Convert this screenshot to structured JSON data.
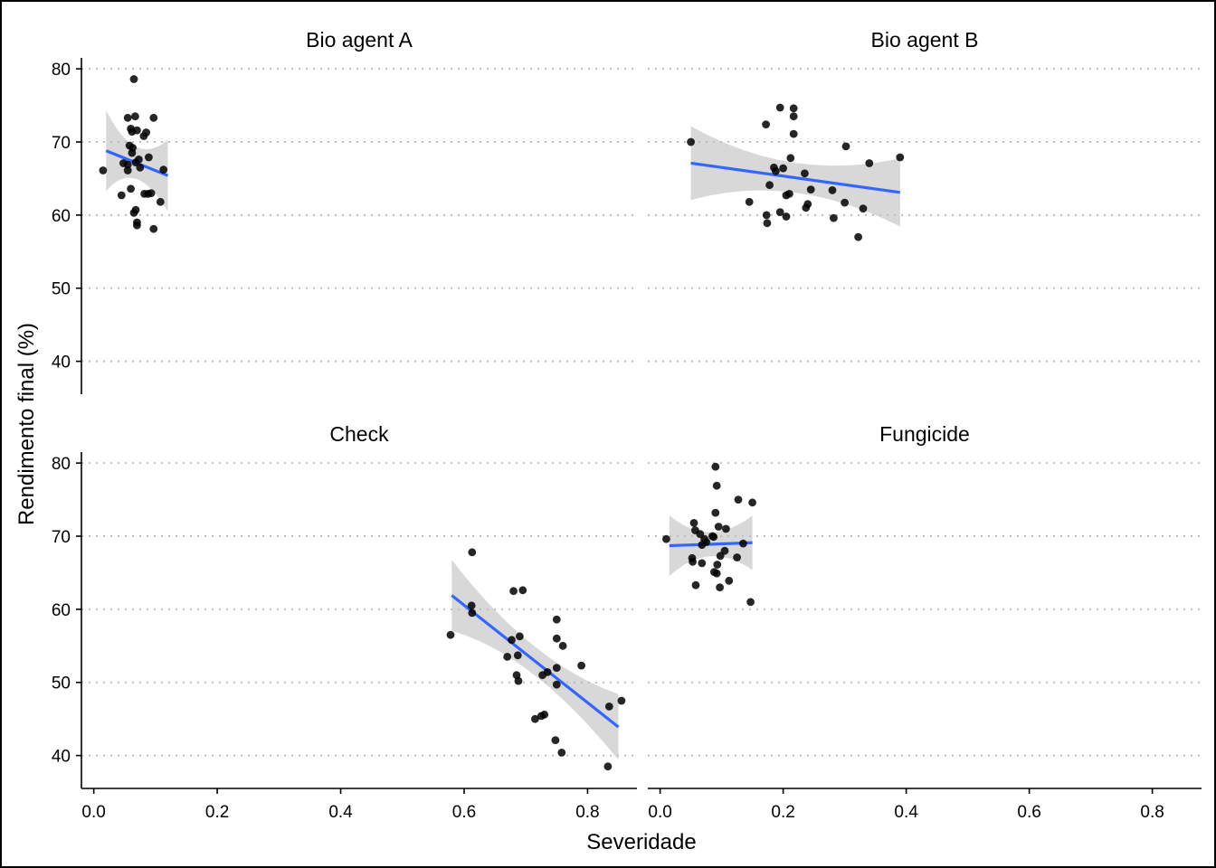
{
  "chart_data": {
    "type": "scatter",
    "xlabel": "Severidade",
    "ylabel": "Rendimento final (%)",
    "xlim": [
      -0.02,
      0.88
    ],
    "ylim": [
      35.5,
      81.5
    ],
    "x_ticks": [
      0.0,
      0.2,
      0.4,
      0.6,
      0.8
    ],
    "x_tick_labels": [
      "0.0",
      "0.2",
      "0.4",
      "0.6",
      "0.8"
    ],
    "y_ticks": [
      40,
      50,
      60,
      70,
      80
    ],
    "y_tick_labels": [
      "40",
      "50",
      "60",
      "70",
      "80"
    ],
    "grid": "horizontal dotted",
    "layout": "facet 2x2, shared axes",
    "colors": {
      "points": "#000000",
      "fit_line": "#3366FF",
      "ci_band": "#BEBEBE"
    },
    "panels": [
      {
        "title": "Bio agent A",
        "fit": {
          "x": [
            0.02,
            0.12
          ],
          "y": [
            68.8,
            65.4
          ],
          "ci_upper": [
            74.3,
            70.3
          ],
          "ci_lower": [
            63.3,
            60.5
          ]
        },
        "points": [
          [
            0.015,
            66.1
          ],
          [
            0.065,
            78.6
          ],
          [
            0.055,
            73.3
          ],
          [
            0.067,
            73.5
          ],
          [
            0.097,
            73.3
          ],
          [
            0.06,
            71.8
          ],
          [
            0.07,
            71.6
          ],
          [
            0.062,
            71.4
          ],
          [
            0.085,
            71.3
          ],
          [
            0.081,
            70.8
          ],
          [
            0.058,
            69.5
          ],
          [
            0.063,
            69.2
          ],
          [
            0.062,
            68.5
          ],
          [
            0.089,
            67.9
          ],
          [
            0.073,
            67.6
          ],
          [
            0.068,
            67.2
          ],
          [
            0.048,
            67.1
          ],
          [
            0.055,
            66.9
          ],
          [
            0.113,
            66.2
          ],
          [
            0.075,
            66.5
          ],
          [
            0.055,
            66.1
          ],
          [
            0.045,
            62.7
          ],
          [
            0.082,
            62.9
          ],
          [
            0.088,
            62.9
          ],
          [
            0.093,
            63.0
          ],
          [
            0.06,
            63.6
          ],
          [
            0.108,
            61.8
          ],
          [
            0.068,
            60.7
          ],
          [
            0.065,
            60.3
          ],
          [
            0.07,
            59.0
          ],
          [
            0.07,
            58.6
          ],
          [
            0.097,
            58.1
          ]
        ]
      },
      {
        "title": "Bio agent B",
        "fit": {
          "x": [
            0.05,
            0.39
          ],
          "y": [
            67.1,
            63.1
          ],
          "ci_upper": [
            72.2,
            67.5
          ],
          "ci_lower": [
            62.1,
            58.2
          ]
        },
        "points": [
          [
            0.05,
            70.0
          ],
          [
            0.195,
            74.7
          ],
          [
            0.217,
            74.6
          ],
          [
            0.217,
            73.5
          ],
          [
            0.172,
            72.4
          ],
          [
            0.217,
            71.1
          ],
          [
            0.302,
            69.4
          ],
          [
            0.39,
            67.9
          ],
          [
            0.212,
            67.8
          ],
          [
            0.34,
            67.1
          ],
          [
            0.185,
            66.5
          ],
          [
            0.2,
            66.4
          ],
          [
            0.188,
            66.0
          ],
          [
            0.235,
            65.7
          ],
          [
            0.178,
            64.1
          ],
          [
            0.245,
            63.5
          ],
          [
            0.28,
            63.4
          ],
          [
            0.205,
            62.7
          ],
          [
            0.21,
            62.9
          ],
          [
            0.145,
            61.8
          ],
          [
            0.24,
            61.5
          ],
          [
            0.237,
            61.0
          ],
          [
            0.3,
            61.7
          ],
          [
            0.33,
            60.9
          ],
          [
            0.195,
            60.4
          ],
          [
            0.205,
            59.8
          ],
          [
            0.173,
            60.0
          ],
          [
            0.174,
            58.9
          ],
          [
            0.282,
            59.6
          ],
          [
            0.322,
            57.0
          ]
        ]
      },
      {
        "title": "Check",
        "fit": {
          "x": [
            0.58,
            0.85
          ],
          "y": [
            61.9,
            43.9
          ],
          "ci_upper": [
            66.7,
            48.4
          ],
          "ci_lower": [
            57.0,
            39.4
          ]
        },
        "points": [
          [
            0.613,
            67.8
          ],
          [
            0.68,
            62.5
          ],
          [
            0.695,
            62.6
          ],
          [
            0.612,
            60.5
          ],
          [
            0.613,
            59.5
          ],
          [
            0.75,
            58.6
          ],
          [
            0.578,
            56.5
          ],
          [
            0.69,
            56.3
          ],
          [
            0.677,
            55.8
          ],
          [
            0.75,
            56.0
          ],
          [
            0.76,
            55.0
          ],
          [
            0.67,
            53.5
          ],
          [
            0.687,
            53.7
          ],
          [
            0.735,
            51.4
          ],
          [
            0.727,
            51.0
          ],
          [
            0.75,
            52.0
          ],
          [
            0.79,
            52.3
          ],
          [
            0.685,
            51.0
          ],
          [
            0.688,
            50.2
          ],
          [
            0.75,
            49.7
          ],
          [
            0.73,
            45.6
          ],
          [
            0.725,
            45.4
          ],
          [
            0.715,
            45.0
          ],
          [
            0.835,
            46.7
          ],
          [
            0.855,
            47.5
          ],
          [
            0.748,
            42.1
          ],
          [
            0.758,
            40.4
          ],
          [
            0.833,
            38.5
          ]
        ]
      },
      {
        "title": "Fungicide",
        "fit": {
          "x": [
            0.015,
            0.15
          ],
          "y": [
            68.7,
            69.1
          ],
          "ci_upper": [
            72.9,
            72.8
          ],
          "ci_lower": [
            64.6,
            65.4
          ]
        },
        "points": [
          [
            0.09,
            79.5
          ],
          [
            0.092,
            76.9
          ],
          [
            0.127,
            75.0
          ],
          [
            0.15,
            74.6
          ],
          [
            0.09,
            73.2
          ],
          [
            0.055,
            71.8
          ],
          [
            0.095,
            71.3
          ],
          [
            0.107,
            71.0
          ],
          [
            0.057,
            70.8
          ],
          [
            0.065,
            70.3
          ],
          [
            0.085,
            70.0
          ],
          [
            0.072,
            69.6
          ],
          [
            0.01,
            69.6
          ],
          [
            0.087,
            69.9
          ],
          [
            0.075,
            69.2
          ],
          [
            0.135,
            69.0
          ],
          [
            0.068,
            68.8
          ],
          [
            0.105,
            68.0
          ],
          [
            0.098,
            67.3
          ],
          [
            0.052,
            67.0
          ],
          [
            0.125,
            67.1
          ],
          [
            0.053,
            66.5
          ],
          [
            0.068,
            66.3
          ],
          [
            0.093,
            66.1
          ],
          [
            0.088,
            65.1
          ],
          [
            0.092,
            64.9
          ],
          [
            0.112,
            63.9
          ],
          [
            0.058,
            63.3
          ],
          [
            0.097,
            63.0
          ],
          [
            0.147,
            61.0
          ]
        ]
      }
    ]
  }
}
